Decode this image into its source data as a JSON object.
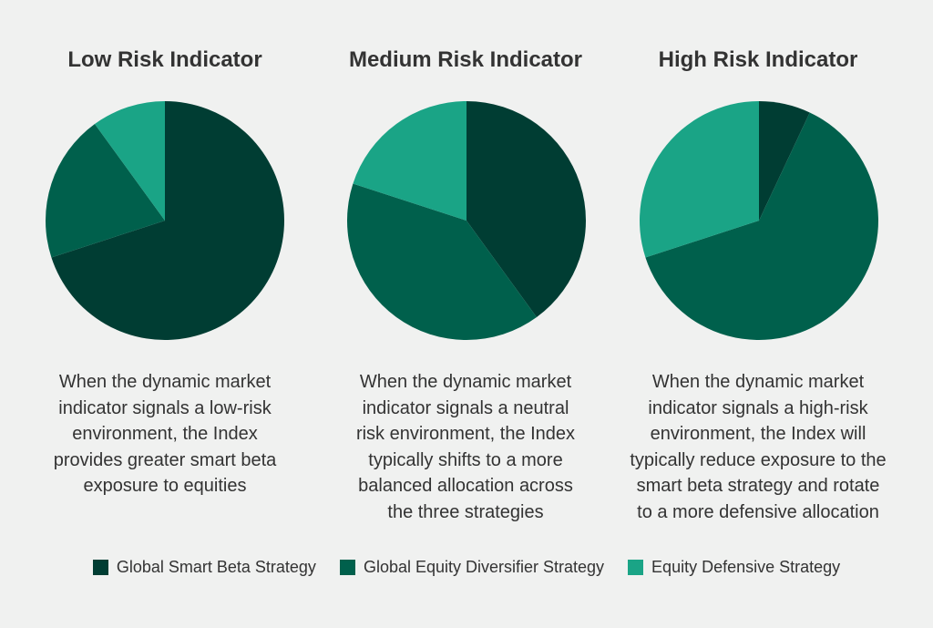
{
  "colors": {
    "global_smart_beta": "#003d33",
    "global_equity_diversifier": "#00604c",
    "equity_defensive": "#1aa486",
    "background": "#f0f1f0",
    "text": "#333333"
  },
  "chart_data": [
    {
      "type": "pie",
      "title": "Low Risk Indicator",
      "labels": [
        "Global Smart Beta Strategy",
        "Global Equity Diversifier Strategy",
        "Equity Defensive Strategy"
      ],
      "values": [
        70,
        20,
        10
      ]
    },
    {
      "type": "pie",
      "title": "Medium Risk Indicator",
      "labels": [
        "Global Smart Beta Strategy",
        "Global Equity Diversifier Strategy",
        "Equity Defensive Strategy"
      ],
      "values": [
        40,
        40,
        20
      ]
    },
    {
      "type": "pie",
      "title": "High Risk Indicator",
      "labels": [
        "Global Smart Beta Strategy",
        "Global Equity Diversifier Strategy",
        "Equity Defensive Strategy"
      ],
      "values": [
        7,
        63,
        30
      ]
    }
  ],
  "descriptions": [
    [
      "When the dynamic market",
      "indicator signals a low-risk",
      "environment, the Index",
      "provides greater smart beta",
      "exposure to equities"
    ],
    [
      "When the dynamic market",
      "indicator signals a neutral",
      "risk environment, the Index",
      "typically shifts to a more",
      "balanced allocation across",
      "the three strategies"
    ],
    [
      "When the dynamic market",
      "indicator signals a high-risk",
      "environment, the Index will",
      "typically reduce exposure to the",
      "smart beta strategy and rotate",
      "to a more defensive allocation"
    ]
  ],
  "legend": {
    "items": [
      {
        "label": "Global Smart Beta Strategy",
        "color": "#003d33"
      },
      {
        "label": "Global Equity Diversifier Strategy",
        "color": "#00604c"
      },
      {
        "label": "Equity Defensive Strategy",
        "color": "#1aa486"
      }
    ]
  }
}
